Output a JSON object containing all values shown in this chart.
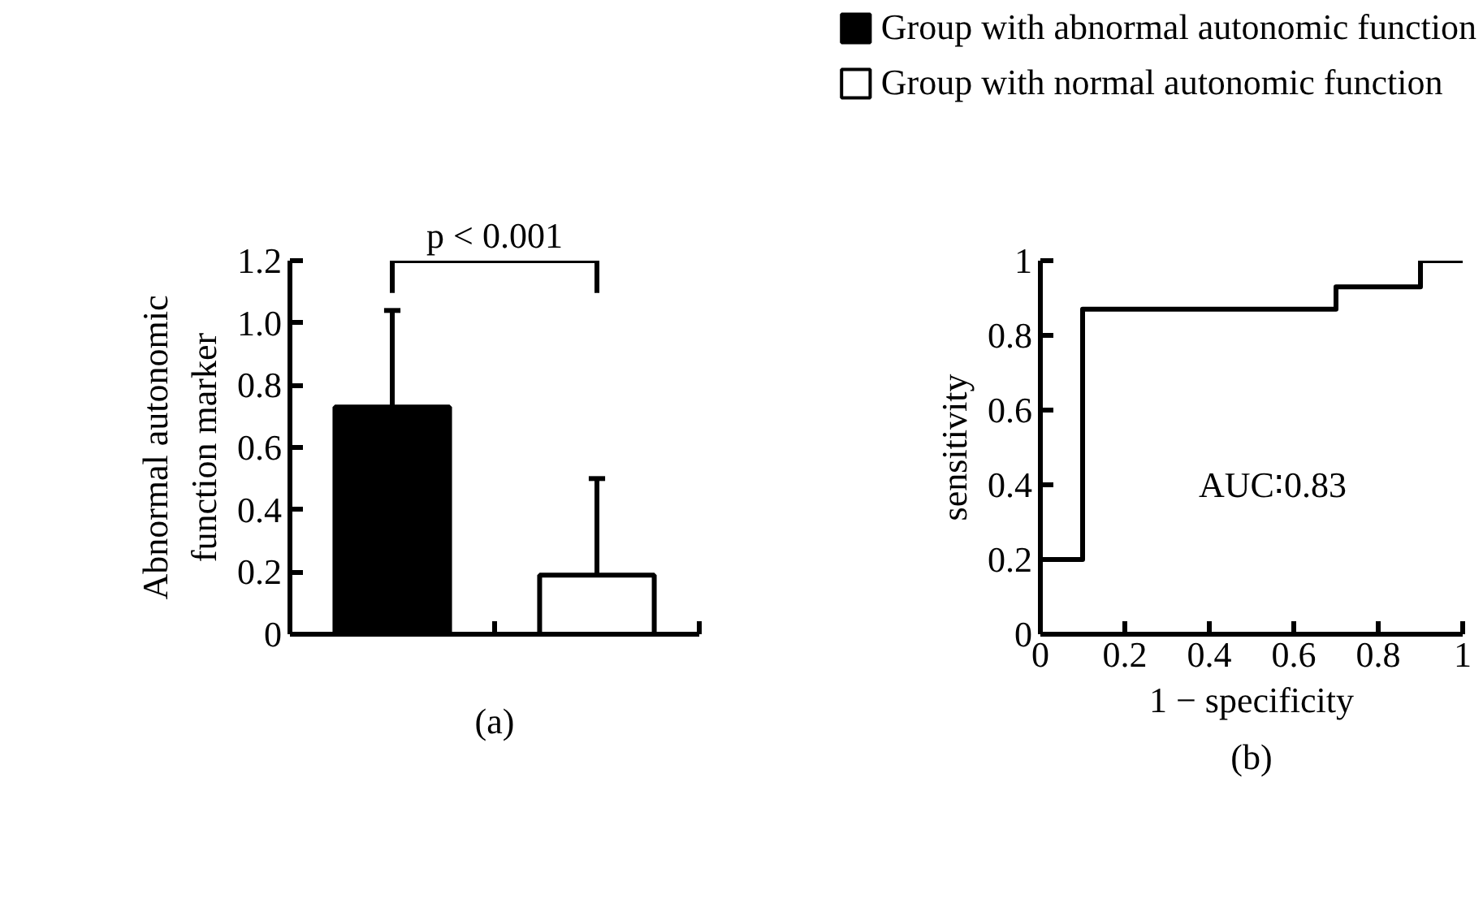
{
  "chart_data": [
    {
      "type": "bar",
      "categories": [
        null,
        null
      ],
      "ylabel": "Abnormal autonomic function marker",
      "series": [
        {
          "name": "Group with abnormal autonomic function",
          "color": "#000000",
          "values": [
            0.73,
            null
          ],
          "errors": [
            [
              0.73,
              1.04
            ],
            null
          ]
        },
        {
          "name": "Group with normal autonomic function",
          "color": "#ffffff",
          "values": [
            null,
            0.19
          ],
          "errors": [
            null,
            [
              0.19,
              0.5
            ]
          ]
        }
      ],
      "ylim": [
        0,
        1.2
      ],
      "yticks": [
        0,
        0.2,
        0.4,
        0.6,
        0.8,
        {
          "value": 1.0,
          "label": "1.0"
        },
        {
          "value": 1.2,
          "label": "1.2"
        }
      ],
      "legend": "top right",
      "grid": false,
      "annotations": [
        "p < 0.001",
        "(a)"
      ]
    },
    {
      "type": "line",
      "xlabel": "1 − specificity",
      "ylabel": "sensitivity",
      "series": [
        {
          "color": "#000000",
          "x": [
            0,
            0.1,
            0.1,
            0.7,
            0.7,
            0.9,
            0.9,
            1
          ],
          "values": [
            0.2,
            0.2,
            0.87,
            0.87,
            0.93,
            0.93,
            1,
            1
          ]
        }
      ],
      "xlim": [
        0,
        1
      ],
      "xticks": [
        0,
        0.2,
        0.4,
        0.6,
        0.8,
        1
      ],
      "ylim": [
        0,
        1
      ],
      "yticks": [
        0,
        0.2,
        0.4,
        0.6,
        0.8,
        1
      ],
      "grid": false,
      "marker": "none",
      "line_style": "solid",
      "annotations": [
        "AUC∶0.83",
        "(b)"
      ]
    }
  ]
}
